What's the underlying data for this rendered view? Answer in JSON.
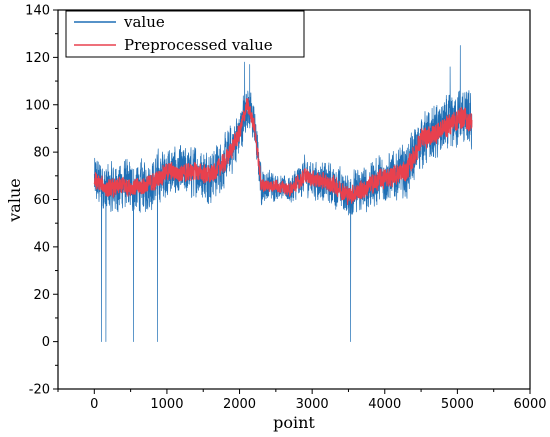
{
  "chart_data": {
    "type": "line",
    "xlabel": "point",
    "ylabel": "value",
    "xlim": [
      -500,
      6000
    ],
    "ylim": [
      -20,
      140
    ],
    "x_ticks": [
      0,
      1000,
      2000,
      3000,
      4000,
      5000,
      6000
    ],
    "y_ticks": [
      -20,
      0,
      20,
      40,
      60,
      80,
      100,
      120,
      140
    ],
    "legend": {
      "placement": "top-left",
      "entries": [
        "value",
        "Preprocessed value"
      ]
    },
    "grid": false,
    "series": [
      {
        "name": "value",
        "color": "#1f6fb5",
        "x_range": [
          0,
          5200
        ],
        "baseline": [
          [
            0,
            68
          ],
          [
            200,
            64
          ],
          [
            400,
            66
          ],
          [
            600,
            65
          ],
          [
            800,
            67
          ],
          [
            1000,
            72
          ],
          [
            1200,
            71
          ],
          [
            1400,
            72
          ],
          [
            1600,
            70
          ],
          [
            1800,
            76
          ],
          [
            2000,
            88
          ],
          [
            2100,
            100
          ],
          [
            2200,
            92
          ],
          [
            2300,
            66
          ],
          [
            2500,
            66
          ],
          [
            2700,
            64
          ],
          [
            2900,
            70
          ],
          [
            3100,
            68
          ],
          [
            3300,
            66
          ],
          [
            3500,
            62
          ],
          [
            3700,
            64
          ],
          [
            3900,
            68
          ],
          [
            4100,
            70
          ],
          [
            4300,
            72
          ],
          [
            4500,
            85
          ],
          [
            4700,
            88
          ],
          [
            4900,
            92
          ],
          [
            5050,
            95
          ],
          [
            5200,
            92
          ]
        ],
        "noise_amplitude": [
          [
            0,
            14
          ],
          [
            2000,
            14
          ],
          [
            2300,
            10
          ],
          [
            2600,
            6
          ],
          [
            2800,
            10
          ],
          [
            3500,
            12
          ],
          [
            4500,
            15
          ],
          [
            5200,
            16
          ]
        ],
        "dropouts": [
          [
            100,
            0
          ],
          [
            160,
            0
          ],
          [
            540,
            0
          ],
          [
            870,
            0
          ],
          [
            3530,
            0
          ]
        ],
        "peaks": [
          [
            5040,
            125
          ],
          [
            2070,
            118
          ],
          [
            2140,
            117
          ],
          [
            4900,
            116
          ]
        ]
      },
      {
        "name": "Preprocessed value",
        "color": "#e8414e",
        "x_range": [
          0,
          5200
        ],
        "baseline": [
          [
            0,
            68
          ],
          [
            200,
            64
          ],
          [
            400,
            66
          ],
          [
            600,
            65
          ],
          [
            800,
            67
          ],
          [
            1000,
            72
          ],
          [
            1200,
            71
          ],
          [
            1400,
            72
          ],
          [
            1600,
            70
          ],
          [
            1800,
            76
          ],
          [
            2000,
            88
          ],
          [
            2100,
            100
          ],
          [
            2200,
            92
          ],
          [
            2300,
            66
          ],
          [
            2500,
            66
          ],
          [
            2700,
            64
          ],
          [
            2900,
            70
          ],
          [
            3100,
            68
          ],
          [
            3300,
            66
          ],
          [
            3500,
            62
          ],
          [
            3700,
            64
          ],
          [
            3900,
            68
          ],
          [
            4100,
            70
          ],
          [
            4300,
            72
          ],
          [
            4500,
            85
          ],
          [
            4700,
            88
          ],
          [
            4900,
            92
          ],
          [
            5050,
            95
          ],
          [
            5200,
            92
          ]
        ],
        "noise_amplitude": [
          [
            0,
            5
          ],
          [
            2000,
            5
          ],
          [
            2300,
            4
          ],
          [
            2600,
            3
          ],
          [
            2800,
            4
          ],
          [
            3500,
            5
          ],
          [
            4500,
            6
          ],
          [
            5200,
            6
          ]
        ]
      }
    ]
  }
}
